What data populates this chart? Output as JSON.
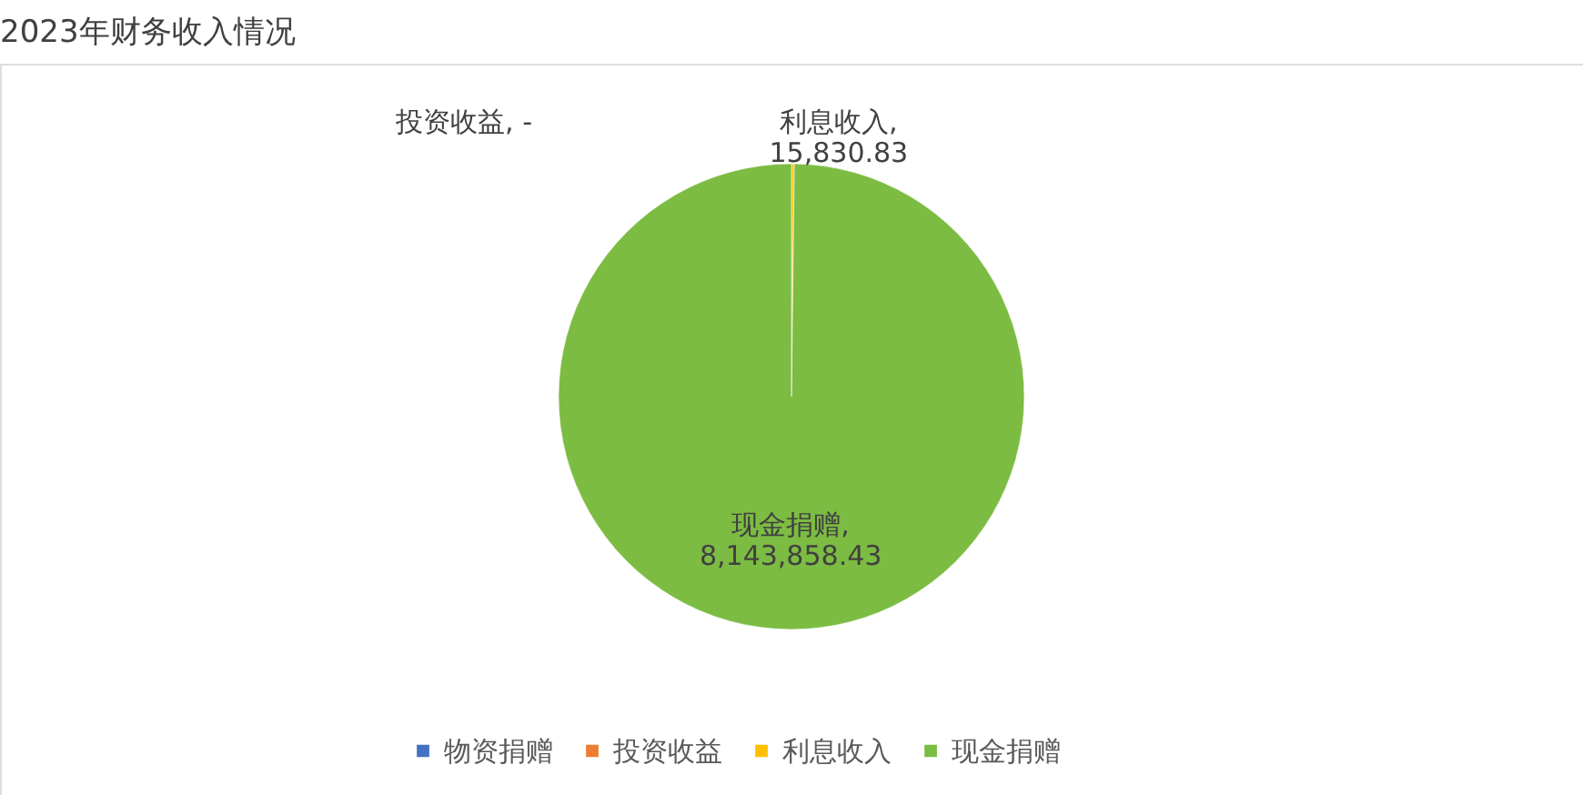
{
  "chart_data": {
    "type": "pie",
    "title": "2023年财务收入情况",
    "categories": [
      "物资捐赠",
      "投资收益",
      "利息收入",
      "现金捐赠"
    ],
    "values": [
      0,
      0,
      15830.83,
      8143858.43
    ],
    "value_labels": [
      null,
      "投资收益, -",
      "利息收入, 15,830.83",
      "现金捐赠, 8,143,858.43"
    ],
    "colors": [
      "#4472c4",
      "#ed7d31",
      "#ffc000",
      "#7cbc42"
    ],
    "legend": "bottom"
  }
}
